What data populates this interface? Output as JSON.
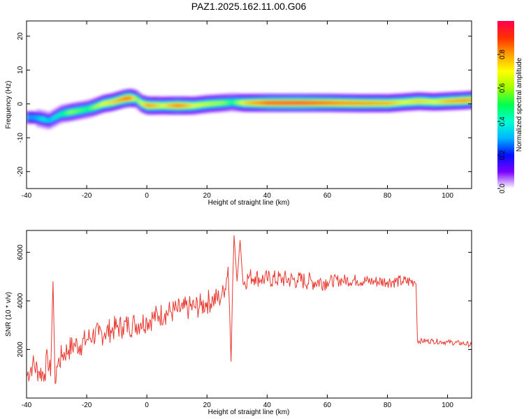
{
  "chart_data": [
    {
      "type": "heatmap",
      "title": "PAZ1.2025.162.11.00.G06",
      "xlabel": "Height of straight line (km)",
      "ylabel": "Frequency (Hz)",
      "xlim": [
        -40,
        108
      ],
      "ylim": [
        -25,
        24.5
      ],
      "xticks": [
        -40,
        -20,
        0,
        20,
        40,
        60,
        80,
        100
      ],
      "yticks": [
        -20,
        -10,
        0,
        10,
        20
      ],
      "colorbar": {
        "label": "Normalized spectral amplitude",
        "range": [
          0,
          1
        ],
        "ticks": [
          0.0,
          0.2,
          0.4,
          0.6,
          0.8
        ],
        "tick_labels": [
          "0.0",
          "0.2",
          "0.4",
          "0.6",
          "0.8"
        ],
        "colormap": [
          "#ffffff",
          "#7a00ff",
          "#0010ff",
          "#00b4ff",
          "#00ffd2",
          "#00ff50",
          "#a0ff00",
          "#ffff00",
          "#ffa000",
          "#ff3000",
          "#ff0050"
        ]
      },
      "ridge": {
        "x": [
          -38,
          -35,
          -33,
          -31,
          -29,
          -26,
          -23,
          -20,
          -18,
          -15,
          -12,
          -10,
          -8,
          -6,
          -4,
          -2,
          0,
          5,
          10,
          15,
          20,
          25,
          28,
          32,
          40,
          50,
          60,
          70,
          80,
          85,
          90,
          95,
          100,
          105,
          108
        ],
        "freq": [
          -4,
          -4.5,
          -5,
          -4,
          -3,
          -2.5,
          -2,
          -1.5,
          -1,
          0,
          0.5,
          1,
          1.5,
          1.8,
          1.5,
          0,
          -0.5,
          -0.5,
          -0.5,
          -0.5,
          0,
          0.3,
          0.5,
          0.3,
          0.3,
          0.3,
          0.3,
          0.2,
          0.2,
          0.5,
          0.8,
          0.6,
          0.8,
          1.0,
          1.2
        ],
        "amplitude": [
          0.3,
          0.4,
          0.35,
          0.4,
          0.45,
          0.6,
          0.55,
          0.5,
          0.6,
          0.7,
          0.75,
          0.8,
          0.9,
          0.9,
          0.6,
          0.7,
          0.85,
          0.7,
          0.9,
          0.7,
          0.65,
          0.6,
          0.5,
          0.75,
          0.95,
          0.98,
          0.9,
          0.85,
          0.8,
          0.7,
          0.75,
          0.7,
          0.8,
          0.85,
          0.8
        ]
      }
    },
    {
      "type": "line",
      "xlabel": "Height of straight line (km)",
      "ylabel": "SNR (10 * v/v)",
      "xlim": [
        -40,
        108
      ],
      "ylim": [
        0,
        6900
      ],
      "xticks": [
        -40,
        -20,
        0,
        20,
        40,
        60,
        80,
        100
      ],
      "yticks": [
        2000,
        4000,
        6000
      ],
      "color": "#e8382f",
      "series": [
        {
          "x": [
            -40,
            -38,
            -36,
            -34,
            -33,
            -32,
            -31.2,
            -30.5,
            -30,
            -28,
            -26,
            -24,
            -22,
            -20,
            -18,
            -16,
            -14,
            -12,
            -10,
            -8,
            -6,
            -4,
            -2,
            0,
            2,
            4,
            6,
            8,
            10,
            12,
            14,
            16,
            18,
            20,
            22,
            24,
            25,
            26,
            27,
            27.5,
            28,
            28.5,
            29,
            30,
            31,
            32,
            34,
            36,
            38,
            40,
            45,
            50,
            55,
            60,
            65,
            70,
            75,
            80,
            85,
            89,
            89.5,
            90,
            95,
            100,
            105,
            108
          ],
          "y": [
            900,
            1400,
            1100,
            1000,
            1700,
            900,
            4800,
            600,
            1300,
            1800,
            2000,
            2200,
            2200,
            2400,
            2600,
            2600,
            2700,
            2800,
            2900,
            2950,
            3000,
            3050,
            3100,
            3200,
            3300,
            3400,
            3500,
            3550,
            3600,
            3650,
            3700,
            3750,
            3800,
            3950,
            4050,
            4100,
            4300,
            4500,
            5400,
            3700,
            1500,
            4500,
            6700,
            4800,
            6500,
            4700,
            5000,
            5000,
            4900,
            4900,
            4900,
            4850,
            4800,
            4800,
            4850,
            4850,
            4800,
            4800,
            4800,
            4800,
            4700,
            2350,
            2350,
            2300,
            2250,
            2200
          ]
        }
      ]
    }
  ]
}
